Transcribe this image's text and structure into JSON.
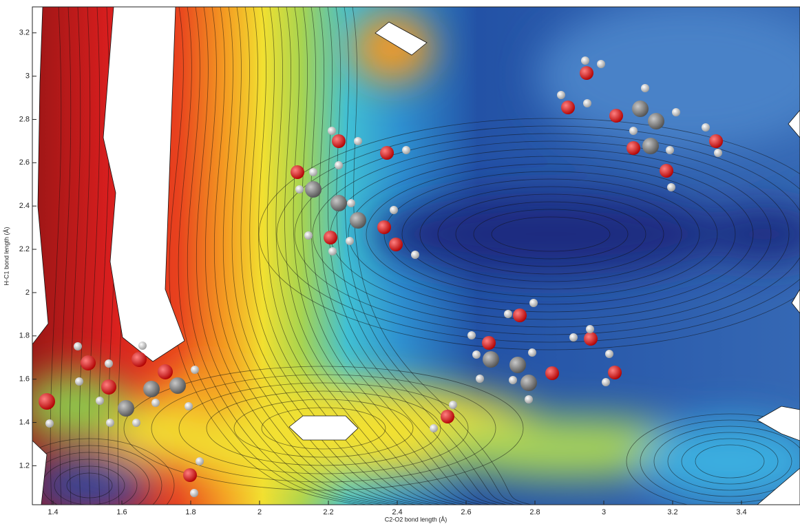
{
  "chart_data": {
    "type": "contour",
    "x_label": "C2-O2 bond length (Å)",
    "y_label": "H-C1 bond length (Å)",
    "xlim": [
      1.34,
      3.57
    ],
    "ylim": [
      1.02,
      3.32
    ],
    "xticks": [
      1.4,
      1.6,
      1.8,
      2,
      2.2,
      2.4,
      2.6,
      2.8,
      3,
      3.2,
      3.4
    ],
    "yticks": [
      1.2,
      1.4,
      1.6,
      1.8,
      2,
      2.2,
      2.4,
      2.6,
      2.8,
      3,
      3.2
    ]
  }
}
